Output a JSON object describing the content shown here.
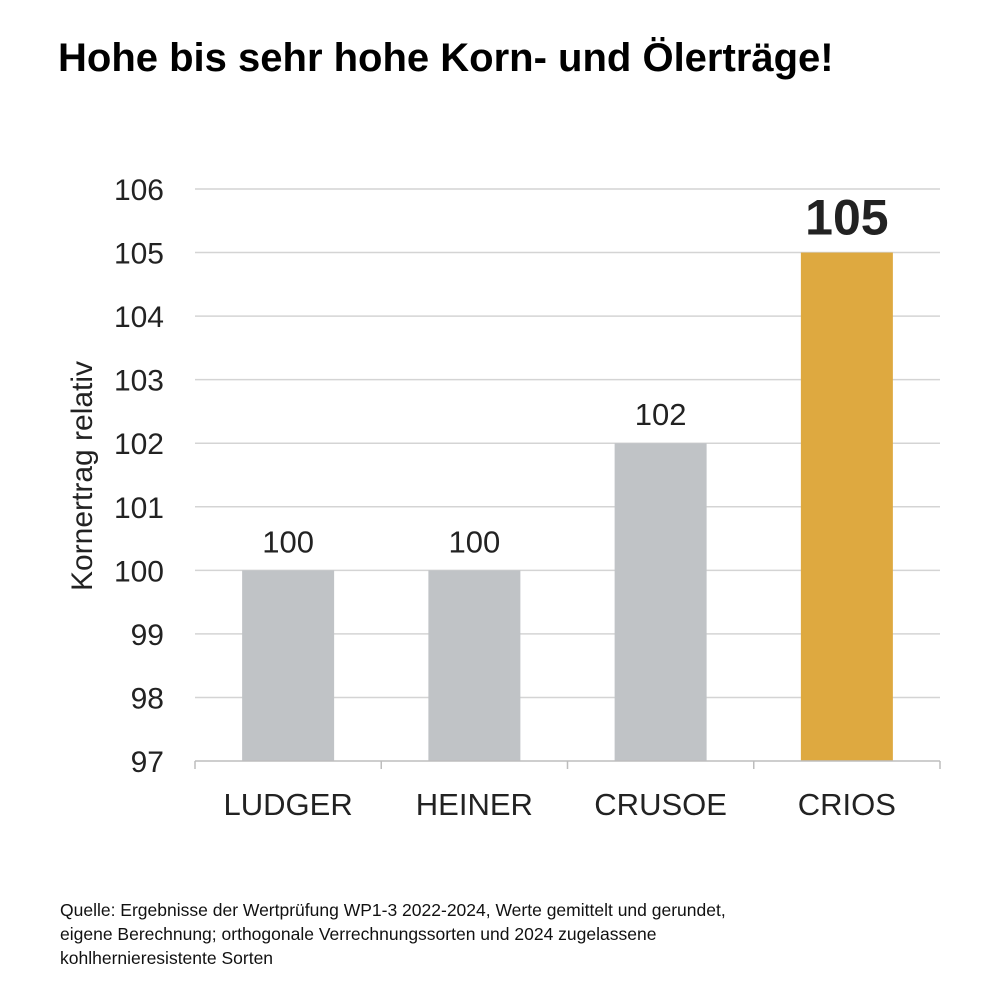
{
  "title": "Hohe bis sehr hohe Korn- und Ölerträge!",
  "chart_data": {
    "type": "bar",
    "categories": [
      "LUDGER",
      "HEINER",
      "CRUSOE",
      "CRIOS"
    ],
    "values": [
      100,
      100,
      102,
      105
    ],
    "data_labels": [
      "100",
      "100",
      "102",
      "105"
    ],
    "highlight_index": 3,
    "bar_color": "#c0c3c6",
    "highlight_color": "#dea940",
    "ylabel": "Kornertrag relativ",
    "xlabel": "",
    "ylim": [
      97,
      106
    ],
    "yticks": [
      97,
      98,
      99,
      100,
      101,
      102,
      103,
      104,
      105,
      106
    ],
    "grid": true
  },
  "source": {
    "lines": [
      "Quelle: Ergebnisse der Wertprüfung WP1-3 2022-2024, Werte gemittelt und gerundet,",
      "eigene Berechnung; orthogonale Verrechnungssorten und 2024 zugelassene",
      "kohlhernieresistente Sorten"
    ]
  }
}
